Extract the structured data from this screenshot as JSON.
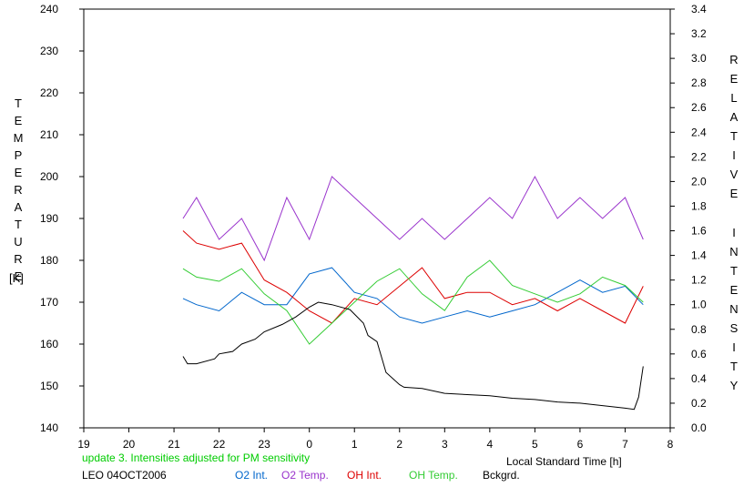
{
  "chart_data": {
    "type": "line",
    "xlabel": "Local Standard Time [h]",
    "ylabel_left": "TEMPERATURE",
    "ylabel_left_unit": "[K]",
    "ylabel_right": "RELATIVE INTENSITY",
    "x_ticks": [
      "19",
      "20",
      "21",
      "22",
      "23",
      "0",
      "1",
      "2",
      "3",
      "4",
      "5",
      "6",
      "7",
      "8"
    ],
    "xlim": [
      19,
      32
    ],
    "ylim_left": [
      140,
      240
    ],
    "y_ticks_left": [
      "140",
      "150",
      "160",
      "170",
      "180",
      "190",
      "200",
      "210",
      "220",
      "230",
      "240"
    ],
    "ylim_right": [
      0.0,
      3.4
    ],
    "y_ticks_right": [
      "0.0",
      "0.2",
      "0.4",
      "0.6",
      "0.8",
      "1.0",
      "1.2",
      "1.4",
      "1.6",
      "1.8",
      "2.0",
      "2.2",
      "2.4",
      "2.6",
      "2.8",
      "3.0",
      "3.2",
      "3.4"
    ],
    "annotation": "update 3. Intensities adjusted for PM sensitivity",
    "annotation_color": "#00cc00",
    "station_label": "LEO 04OCT2006",
    "grid": false,
    "legend_position": "bottom",
    "series": [
      {
        "name": "O2 Int.",
        "axis": "right",
        "color": "#0066cc",
        "x": [
          21.2,
          21.5,
          22.0,
          22.5,
          23.0,
          23.5,
          24.0,
          24.5,
          25.0,
          25.5,
          26.0,
          26.5,
          27.0,
          27.5,
          28.0,
          28.5,
          29.0,
          29.5,
          30.0,
          30.5,
          31.0,
          31.4
        ],
        "y": [
          1.05,
          1.0,
          0.95,
          1.1,
          1.0,
          1.0,
          1.25,
          1.3,
          1.1,
          1.05,
          0.9,
          0.85,
          0.9,
          0.95,
          0.9,
          0.95,
          1.0,
          1.1,
          1.2,
          1.1,
          1.15,
          1.0
        ]
      },
      {
        "name": "O2 Temp.",
        "axis": "left",
        "color": "#9933cc",
        "x": [
          21.2,
          21.5,
          22.0,
          22.5,
          23.0,
          23.5,
          24.0,
          24.5,
          25.0,
          25.5,
          26.0,
          26.5,
          27.0,
          27.5,
          28.0,
          28.5,
          29.0,
          29.5,
          30.0,
          30.5,
          31.0,
          31.4
        ],
        "y": [
          190,
          195,
          185,
          190,
          180,
          195,
          185,
          200,
          195,
          190,
          185,
          190,
          185,
          190,
          195,
          190,
          200,
          190,
          195,
          190,
          195,
          185
        ]
      },
      {
        "name": "OH Int.",
        "axis": "right",
        "color": "#dd0000",
        "x": [
          21.2,
          21.5,
          22.0,
          22.5,
          23.0,
          23.5,
          24.0,
          24.5,
          25.0,
          25.5,
          26.0,
          26.5,
          27.0,
          27.5,
          28.0,
          28.5,
          29.0,
          29.5,
          30.0,
          30.5,
          31.0,
          31.4
        ],
        "y": [
          1.6,
          1.5,
          1.45,
          1.5,
          1.2,
          1.1,
          0.95,
          0.85,
          1.05,
          1.0,
          1.15,
          1.3,
          1.05,
          1.1,
          1.1,
          1.0,
          1.05,
          0.95,
          1.05,
          0.95,
          0.85,
          1.15
        ]
      },
      {
        "name": "OH Temp.",
        "axis": "left",
        "color": "#33cc33",
        "x": [
          21.2,
          21.5,
          22.0,
          22.5,
          23.0,
          23.5,
          24.0,
          24.5,
          25.0,
          25.5,
          26.0,
          26.5,
          27.0,
          27.5,
          28.0,
          28.5,
          29.0,
          29.5,
          30.0,
          30.5,
          31.0,
          31.4
        ],
        "y": [
          178,
          176,
          175,
          178,
          172,
          168,
          160,
          165,
          170,
          175,
          178,
          172,
          168,
          176,
          180,
          174,
          172,
          170,
          172,
          176,
          174,
          170
        ]
      },
      {
        "name": "Bckgrd.",
        "axis": "right",
        "color": "#000000",
        "x": [
          21.2,
          21.3,
          21.5,
          21.9,
          22.0,
          22.3,
          22.5,
          22.8,
          23.0,
          23.4,
          23.7,
          24.0,
          24.2,
          24.5,
          24.9,
          25.2,
          25.3,
          25.5,
          25.7,
          26.0,
          26.1,
          26.5,
          27.0,
          27.5,
          28.0,
          28.5,
          29.0,
          29.5,
          30.0,
          30.5,
          31.0,
          31.2,
          31.3,
          31.4
        ],
        "y": [
          0.58,
          0.52,
          0.52,
          0.56,
          0.6,
          0.62,
          0.68,
          0.72,
          0.78,
          0.84,
          0.9,
          0.98,
          1.02,
          1.0,
          0.96,
          0.85,
          0.75,
          0.7,
          0.45,
          0.35,
          0.33,
          0.32,
          0.28,
          0.27,
          0.26,
          0.24,
          0.23,
          0.21,
          0.2,
          0.18,
          0.16,
          0.15,
          0.25,
          0.5
        ]
      }
    ]
  }
}
